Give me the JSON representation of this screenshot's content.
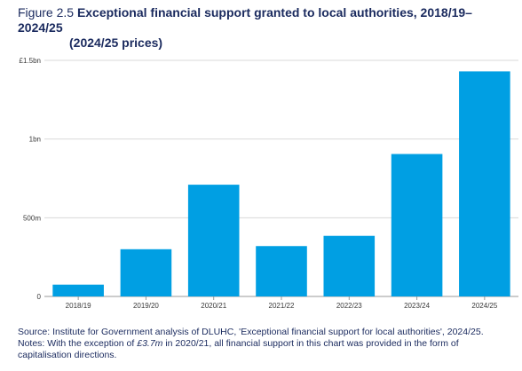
{
  "title": {
    "prefix": "Figure 2.5",
    "main": "Exceptional financial support granted to local authorities, 2018/19–2024/25",
    "line2": "(2024/25 prices)"
  },
  "colors": {
    "bar": "#009fe3",
    "grid": "#d9d9d9",
    "title": "#1a2a5e"
  },
  "chart_data": {
    "type": "bar",
    "categories": [
      "2018/19",
      "2019/20",
      "2020/21",
      "2021/22",
      "2022/23",
      "2023/24",
      "2024/25"
    ],
    "values": [
      0.075,
      0.3,
      0.71,
      0.32,
      0.385,
      0.905,
      1.43
    ],
    "yunit": "£bn",
    "ylim": [
      0,
      1.5
    ],
    "yticks": [
      {
        "value": 0,
        "label": "0"
      },
      {
        "value": 0.5,
        "label": "500m"
      },
      {
        "value": 1.0,
        "label": "1bn"
      },
      {
        "value": 1.5,
        "label": "£1.5bn"
      }
    ],
    "grid": true,
    "legend": "none"
  },
  "footnote": {
    "source": "Source: Institute for Government analysis of DLUHC, 'Exceptional financial support for local authorities', 2024/25.",
    "notes_pre": "Notes: With the exception of ",
    "notes_em": "£3.7m",
    "notes_post": " in 2020/21, all financial support in this chart was provided in the form of capitalisation directions."
  }
}
